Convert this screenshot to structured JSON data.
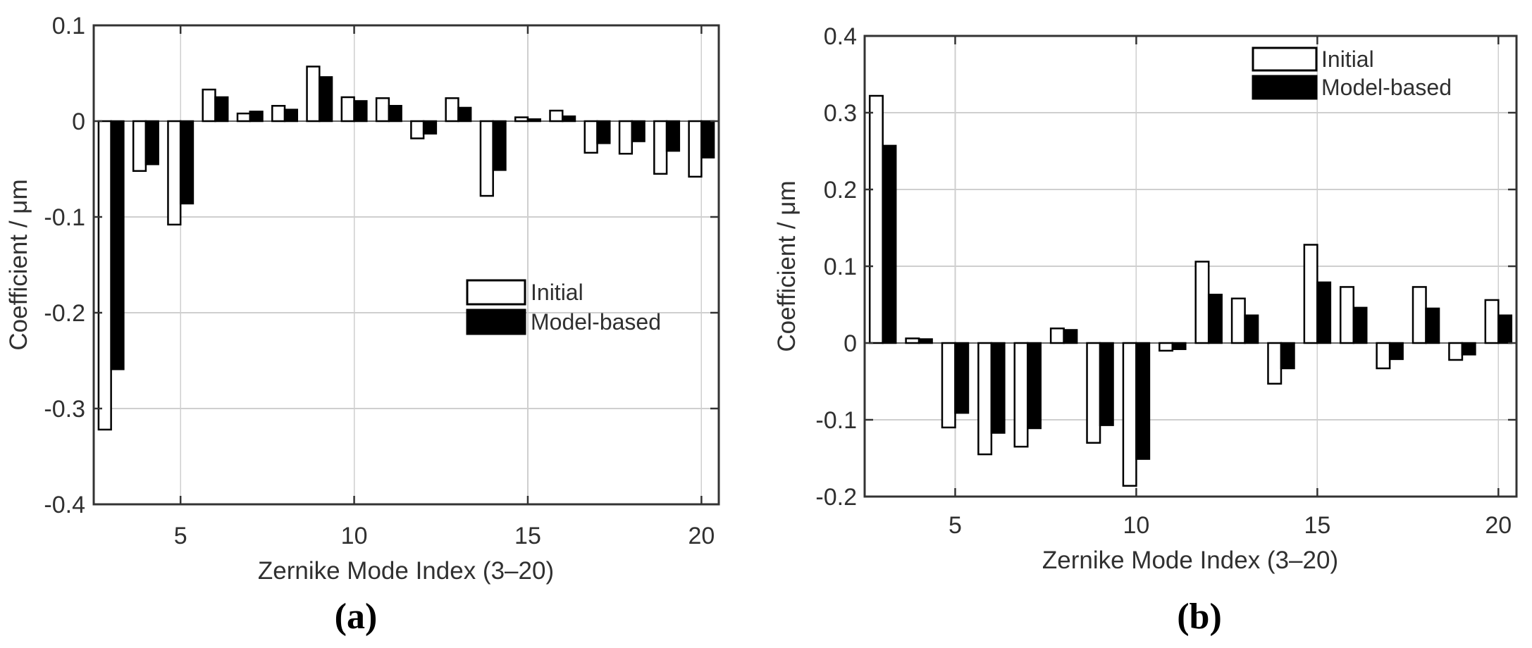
{
  "page": {
    "background": "#ffffff",
    "grid_color": "#cfcfcf",
    "axis_color": "#333333",
    "baseline_color": "#666666"
  },
  "chart_data": [
    {
      "type": "bar",
      "panel": "a",
      "caption": "(a)",
      "title": "",
      "xlabel": "Zernike Mode Index (3–20)",
      "ylabel": "Coefficient / μm",
      "categories": [
        3,
        4,
        5,
        6,
        7,
        8,
        9,
        10,
        11,
        12,
        13,
        14,
        15,
        16,
        17,
        18,
        19,
        20
      ],
      "series": [
        {
          "name": "Initial",
          "color": "#ffffff",
          "edge": "#000000",
          "values": [
            -0.322,
            -0.052,
            -0.108,
            0.033,
            0.008,
            0.016,
            0.057,
            0.025,
            0.024,
            -0.018,
            0.024,
            -0.078,
            0.004,
            0.011,
            -0.033,
            -0.034,
            -0.055,
            -0.058
          ]
        },
        {
          "name": "Model-based",
          "color": "#000000",
          "edge": "#000000",
          "values": [
            -0.259,
            -0.045,
            -0.086,
            0.025,
            0.01,
            0.012,
            0.046,
            0.021,
            0.016,
            -0.013,
            0.014,
            -0.051,
            0.002,
            0.005,
            -0.023,
            -0.021,
            -0.031,
            -0.038
          ]
        }
      ],
      "xlim": [
        2.5,
        20.5
      ],
      "ylim": [
        -0.4,
        0.1
      ],
      "xticks": [
        5,
        10,
        15,
        20
      ],
      "yticks": [
        {
          "v": 0.1,
          "label": "0.1"
        },
        {
          "v": 0,
          "label": "0"
        },
        {
          "v": -0.1,
          "label": "-0.1"
        },
        {
          "v": -0.2,
          "label": "-0.2"
        },
        {
          "v": -0.3,
          "label": "-0.3"
        },
        {
          "v": -0.4,
          "label": "-0.4"
        }
      ],
      "grid": true,
      "legend_position": "inside-center-right"
    },
    {
      "type": "bar",
      "panel": "b",
      "caption": "(b)",
      "title": "",
      "xlabel": "Zernike Mode Index (3–20)",
      "ylabel": "Coefficient / μm",
      "categories": [
        3,
        4,
        5,
        6,
        7,
        8,
        9,
        10,
        11,
        12,
        13,
        14,
        15,
        16,
        17,
        18,
        19,
        20
      ],
      "series": [
        {
          "name": "Initial",
          "color": "#ffffff",
          "edge": "#000000",
          "values": [
            0.322,
            0.006,
            -0.11,
            -0.145,
            -0.135,
            0.019,
            -0.13,
            -0.186,
            -0.01,
            0.106,
            0.058,
            -0.053,
            0.128,
            0.073,
            -0.033,
            0.073,
            -0.022,
            0.056
          ]
        },
        {
          "name": "Model-based",
          "color": "#000000",
          "edge": "#000000",
          "values": [
            0.257,
            0.005,
            -0.091,
            -0.117,
            -0.111,
            0.017,
            -0.107,
            -0.151,
            -0.008,
            0.063,
            0.036,
            -0.033,
            0.079,
            0.046,
            -0.021,
            0.045,
            -0.015,
            0.036
          ]
        }
      ],
      "xlim": [
        2.5,
        20.5
      ],
      "ylim": [
        -0.2,
        0.4
      ],
      "xticks": [
        5,
        10,
        15,
        20
      ],
      "yticks": [
        {
          "v": 0.4,
          "label": "0.4"
        },
        {
          "v": 0.3,
          "label": "0.3"
        },
        {
          "v": 0.2,
          "label": "0.2"
        },
        {
          "v": 0.1,
          "label": "0.1"
        },
        {
          "v": 0,
          "label": "0"
        },
        {
          "v": -0.1,
          "label": "-0.1"
        },
        {
          "v": -0.2,
          "label": "-0.2"
        }
      ],
      "grid": true,
      "legend_position": "inside-top-right"
    }
  ]
}
